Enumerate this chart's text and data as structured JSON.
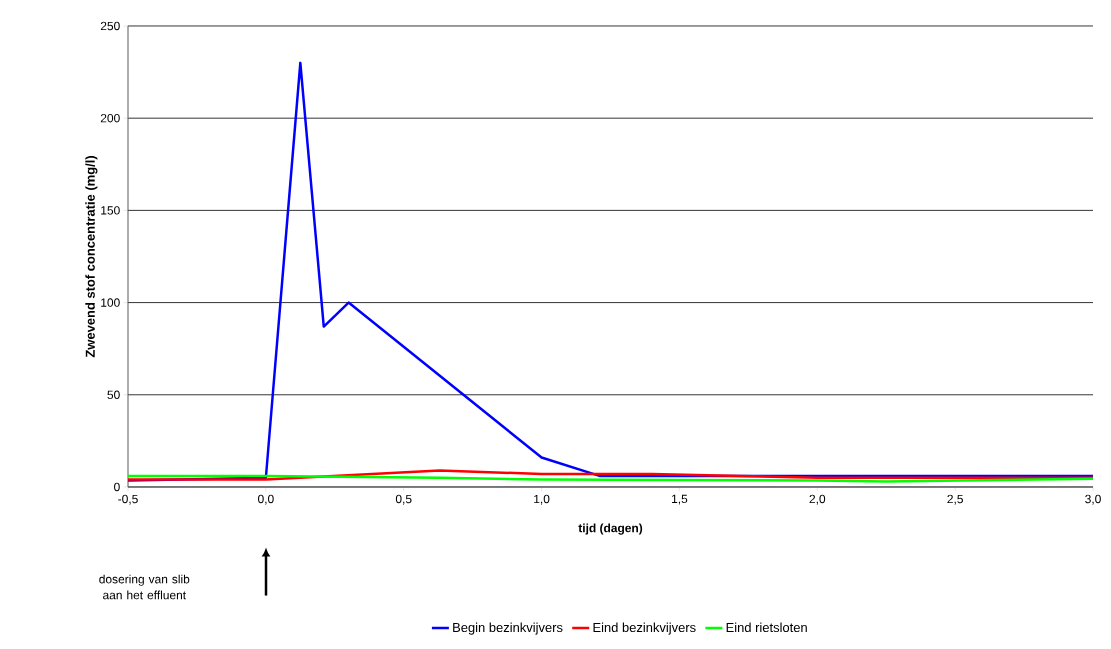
{
  "chart_data": {
    "type": "line",
    "xlabel": "tijd (dagen)",
    "ylabel": "Zwevend stof concentratie (mg/l)",
    "xlim": [
      -0.5,
      3.0
    ],
    "ylim": [
      0,
      250
    ],
    "xticks": [
      {
        "value": -0.5,
        "label": "-0,5"
      },
      {
        "value": 0,
        "label": "0,0"
      },
      {
        "value": 0.5,
        "label": "0,5"
      },
      {
        "value": 1.0,
        "label": "1,0"
      },
      {
        "value": 1.5,
        "label": "1,5"
      },
      {
        "value": 2.0,
        "label": "2,0"
      },
      {
        "value": 2.5,
        "label": "2,5"
      },
      {
        "value": 3.0,
        "label": "3,0"
      }
    ],
    "yticks": [
      0,
      50,
      100,
      150,
      200,
      250
    ],
    "grid": "y",
    "legend": "bottom",
    "marker": "none",
    "line_style": "solid",
    "annotations": [
      "dosering van slib aan het effluent"
    ],
    "series": [
      {
        "name": "Begin bezinkvijvers",
        "color": "#0000ff",
        "x": [
          -0.5,
          0,
          0.125,
          0.21,
          0.3,
          1.0,
          1.21,
          2.0,
          3.0
        ],
        "values": [
          3.5,
          5,
          230,
          87,
          100,
          16,
          6,
          6,
          6
        ]
      },
      {
        "name": "Eind bezinkvijvers",
        "color": "#ff0000",
        "x": [
          -0.5,
          0,
          0.63,
          1.0,
          1.4,
          2.0,
          3.0
        ],
        "values": [
          4,
          4,
          9,
          7,
          7,
          5,
          5
        ]
      },
      {
        "name": "Eind rietsloten",
        "color": "#00ff00",
        "x": [
          -0.5,
          0,
          0.63,
          1.0,
          2.0,
          2.25,
          3.0
        ],
        "values": [
          6,
          6,
          5,
          4,
          3.5,
          3,
          4.5
        ]
      }
    ]
  }
}
